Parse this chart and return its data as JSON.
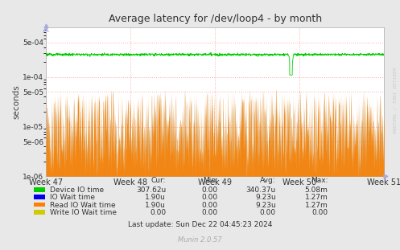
{
  "title": "Average latency for /dev/loop4 - by month",
  "ylabel": "seconds",
  "xlabel_ticks": [
    "Week 47",
    "Week 48",
    "Week 49",
    "Week 50",
    "Week 51"
  ],
  "background_color": "#e8e8e8",
  "plot_bg_color": "#ffffff",
  "grid_color": "#ff9999",
  "green_color": "#00cc00",
  "orange_color": "#ff8000",
  "blue_color": "#0000ee",
  "yellow_color": "#cccc00",
  "legend_labels": [
    "Device IO time",
    "IO Wait time",
    "Read IO Wait time",
    "Write IO Wait time"
  ],
  "legend_colors": [
    "#00cc00",
    "#0000ee",
    "#ff8000",
    "#cccc00"
  ],
  "cur_values": [
    "307.62u",
    "1.90u",
    "1.90u",
    "0.00"
  ],
  "min_values": [
    "0.00",
    "0.00",
    "0.00",
    "0.00"
  ],
  "avg_values": [
    "340.37u",
    "9.23u",
    "9.23u",
    "0.00"
  ],
  "max_values": [
    "5.08m",
    "1.27m",
    "1.27m",
    "0.00"
  ],
  "footer": "Last update: Sun Dec 22 04:45:23 2024",
  "munin_version": "Munin 2.0.57",
  "rrdtool_label": "RRDTOOL / TOBI OETIKER",
  "yticks": [
    1e-06,
    5e-06,
    1e-05,
    5e-05,
    0.0001,
    0.0005
  ],
  "ytick_labels": [
    "1e-06",
    "5e-06",
    "1e-05",
    "5e-05",
    "1e-04",
    "5e-04"
  ],
  "ylim": [
    1e-06,
    0.001
  ],
  "n_points": 1500
}
